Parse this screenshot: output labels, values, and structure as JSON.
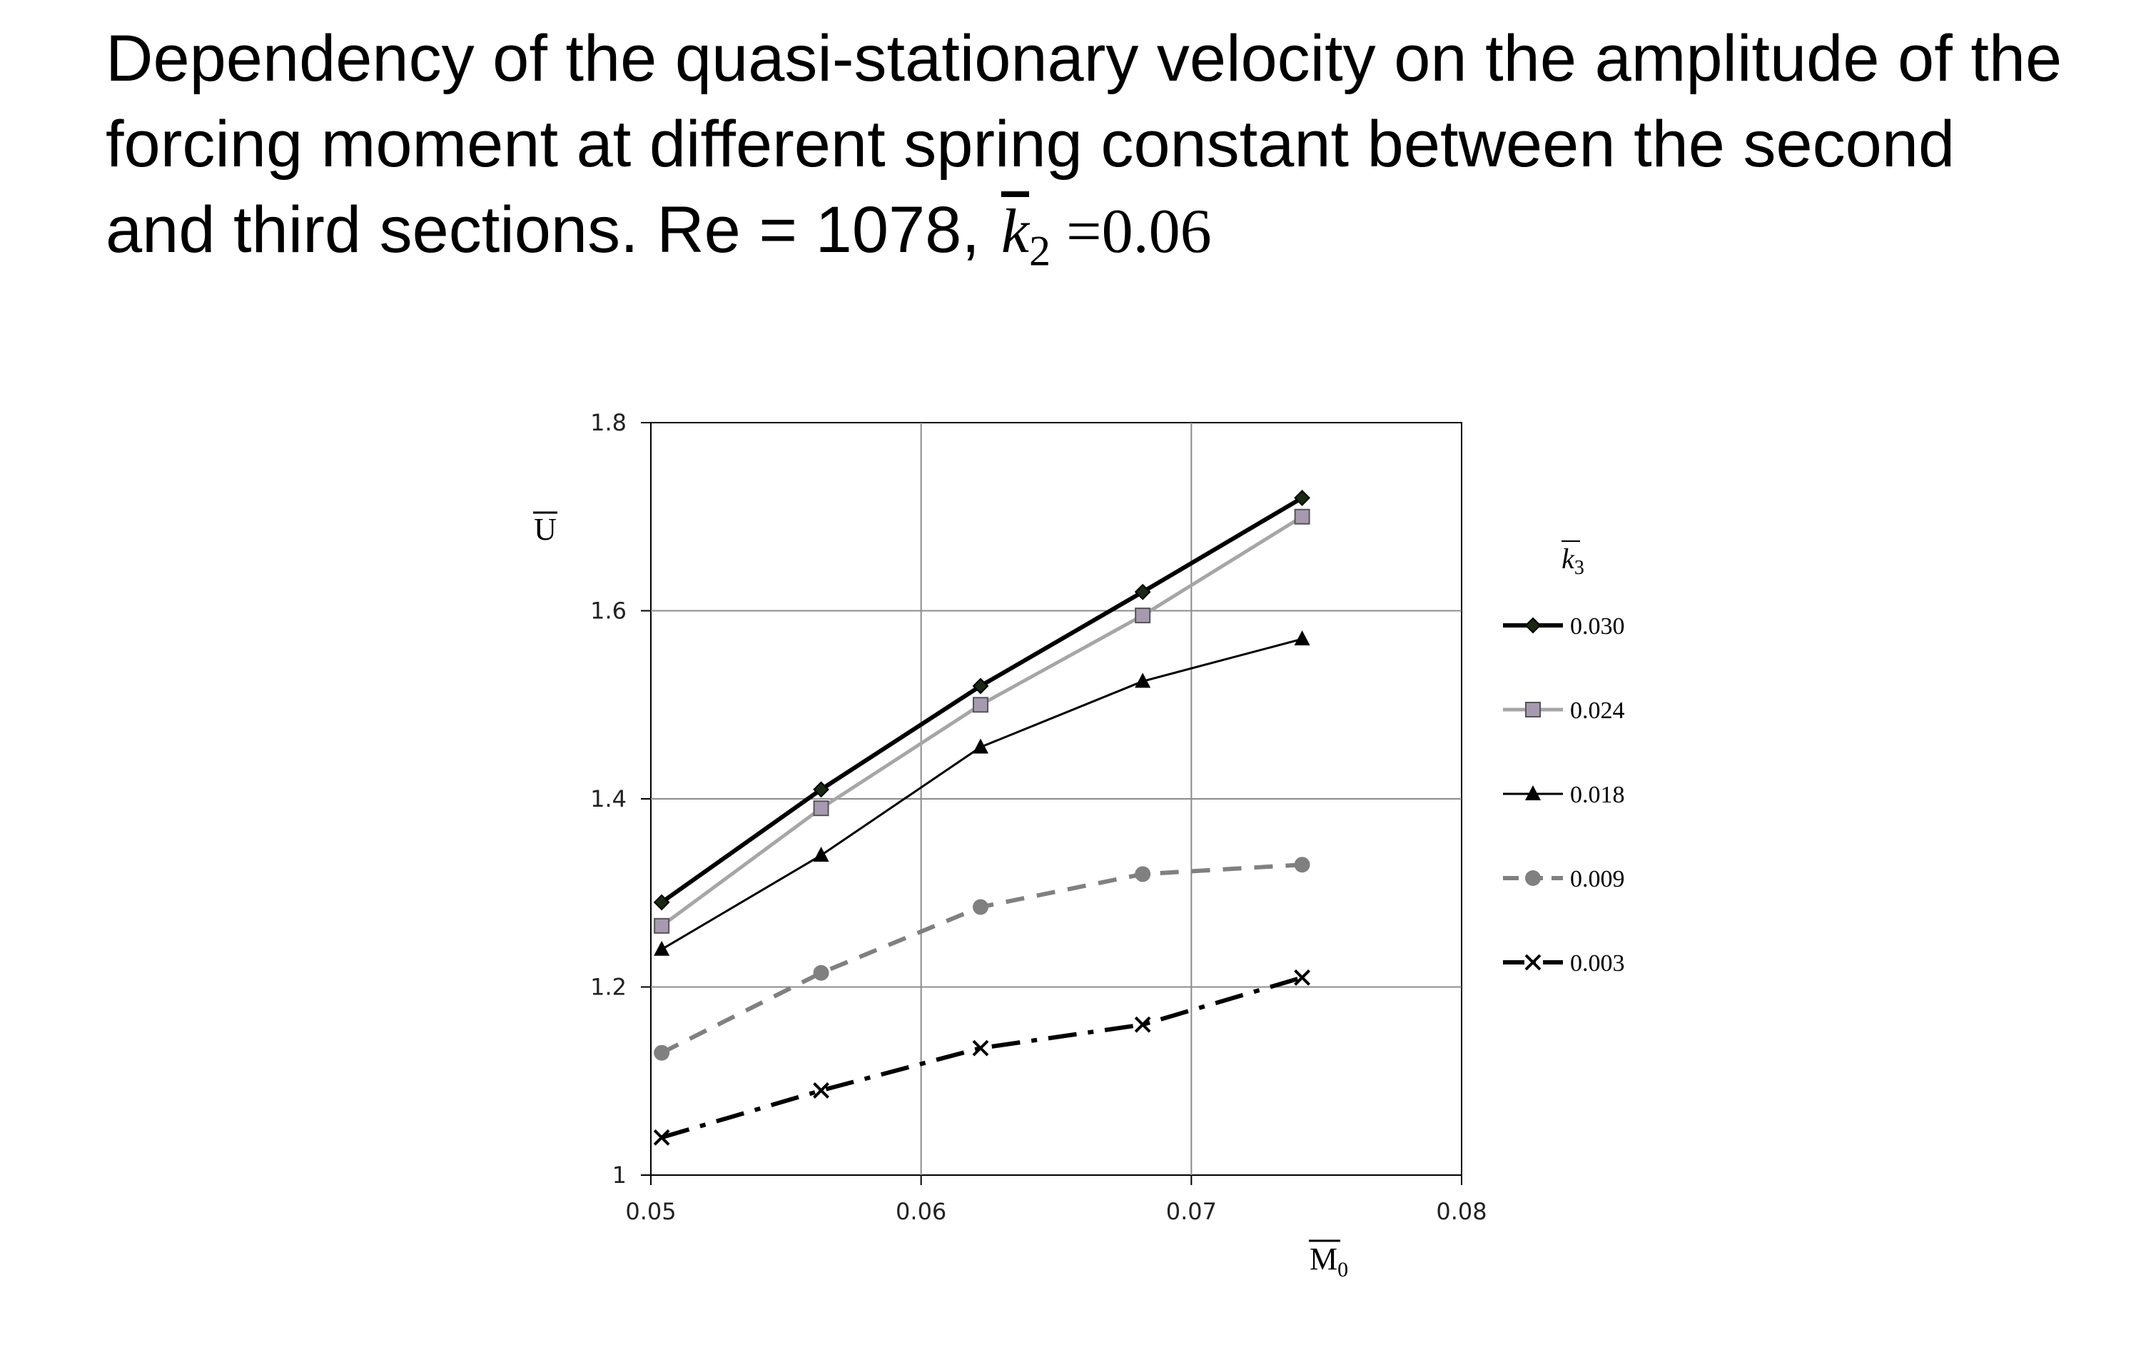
{
  "title": {
    "text": "Dependency of the quasi-stationary velocity on the amplitude of the forcing moment at different spring constant between the second and third sections. Re = 1078,",
    "math_symbol": "k",
    "math_subscript": "2",
    "math_rest": "=0.06"
  },
  "chart_data": {
    "type": "line",
    "xlabel": "M",
    "xlabel_subscript": "0",
    "ylabel": "U",
    "xlim": [
      0.05,
      0.08
    ],
    "ylim": [
      1,
      1.8
    ],
    "x_ticks": [
      "0.05",
      "0.06",
      "0.07",
      "0.08"
    ],
    "y_ticks": [
      "1",
      "1.2",
      "1.4",
      "1.6",
      "1.8"
    ],
    "grid": true,
    "legend_title": "k",
    "legend_title_subscript": "3",
    "legend_position": "right",
    "x": [
      0.0504,
      0.0563,
      0.0622,
      0.0682,
      0.0741
    ],
    "series": [
      {
        "name": "0.030",
        "values": [
          1.29,
          1.41,
          1.52,
          1.62,
          1.72
        ],
        "color": "#000000",
        "marker": "diamond",
        "dash": "solid",
        "width": 6
      },
      {
        "name": "0.024",
        "values": [
          1.265,
          1.39,
          1.5,
          1.595,
          1.7
        ],
        "color": "#a6a6a6",
        "marker": "square",
        "dash": "solid",
        "width": 5
      },
      {
        "name": "0.018",
        "values": [
          1.24,
          1.34,
          1.455,
          1.525,
          1.57
        ],
        "color": "#000000",
        "marker": "triangle",
        "dash": "solid",
        "width": 3
      },
      {
        "name": "0.009",
        "values": [
          1.13,
          1.215,
          1.285,
          1.32,
          1.33
        ],
        "color": "#808080",
        "marker": "circle",
        "dash": "dashed",
        "width": 6
      },
      {
        "name": "0.003",
        "values": [
          1.04,
          1.09,
          1.135,
          1.16,
          1.21
        ],
        "color": "#000000",
        "marker": "x",
        "dash": "dashdot",
        "width": 6
      }
    ]
  }
}
